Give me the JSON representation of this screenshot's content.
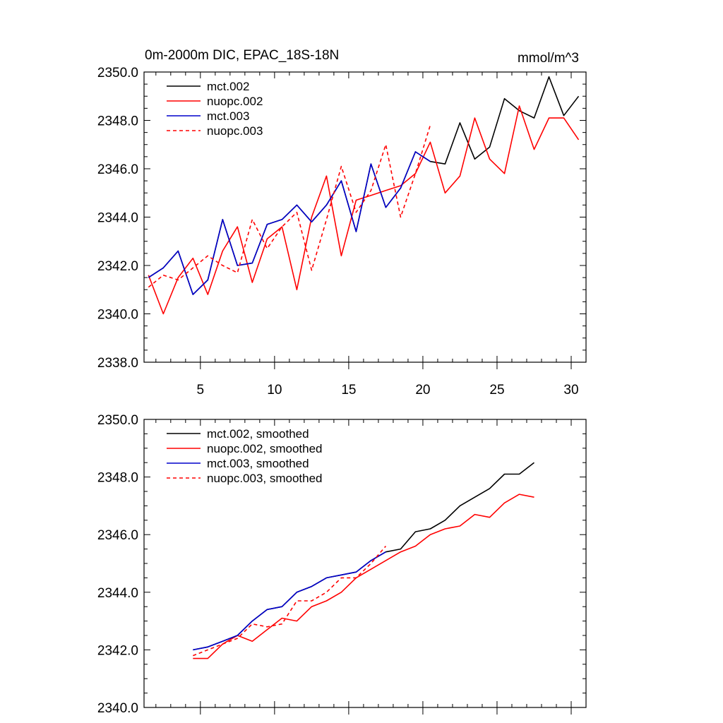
{
  "chart_data": [
    {
      "type": "line",
      "title": "0m-2000m DIC, EPAC_18S-18N",
      "units": "mmol/m^3",
      "xlim": [
        1.2,
        31
      ],
      "ylim": [
        2338,
        2350
      ],
      "xticks": [
        5,
        10,
        15,
        20,
        25,
        30
      ],
      "xtick_labels": [
        "5",
        "10",
        "15",
        "20",
        "25",
        "30"
      ],
      "yticks": [
        2338,
        2340,
        2342,
        2344,
        2346,
        2348,
        2350
      ],
      "ytick_labels": [
        "2338.0",
        "2340.0",
        "2342.0",
        "2344.0",
        "2346.0",
        "2348.0",
        "2350.0"
      ],
      "legend_position": "top-left",
      "series": [
        {
          "name": "mct.002",
          "color": "#000000",
          "dash": "solid",
          "x": [
            1.5,
            2.5,
            3.5,
            4.5,
            5.5,
            6.5,
            7.5,
            8.5,
            9.5,
            10.5,
            11.5,
            12.5,
            13.5,
            14.5,
            15.5,
            16.5,
            17.5,
            18.5,
            19.5,
            20.5,
            21.5,
            22.5,
            23.5,
            24.5,
            25.5,
            26.5,
            27.5,
            28.5,
            29.5,
            30.5
          ],
          "y": [
            2341.5,
            2341.9,
            2342.6,
            2340.8,
            2341.4,
            2343.9,
            2342.0,
            2342.1,
            2343.7,
            2343.9,
            2344.5,
            2343.8,
            2344.5,
            2345.5,
            2343.4,
            2346.2,
            2344.4,
            2345.2,
            2346.7,
            2346.3,
            2346.2,
            2347.9,
            2346.4,
            2346.9,
            2348.9,
            2348.4,
            2348.1,
            2349.8,
            2348.2,
            2349.0
          ]
        },
        {
          "name": "nuopc.002",
          "color": "#ff0000",
          "dash": "solid",
          "x": [
            1.5,
            2.5,
            3.5,
            4.5,
            5.5,
            6.5,
            7.5,
            8.5,
            9.5,
            10.5,
            11.5,
            12.5,
            13.5,
            14.5,
            15.5,
            16.5,
            17.5,
            18.5,
            19.5,
            20.5,
            21.5,
            22.5,
            23.5,
            24.5,
            25.5,
            26.5,
            27.5,
            28.5,
            29.5,
            30.5
          ],
          "y": [
            2341.6,
            2340.0,
            2341.5,
            2342.3,
            2340.8,
            2342.6,
            2343.6,
            2341.3,
            2343.1,
            2343.6,
            2341.0,
            2344.0,
            2345.7,
            2342.4,
            2344.7,
            2344.9,
            2345.1,
            2345.3,
            2345.8,
            2347.1,
            2345.0,
            2345.7,
            2348.1,
            2346.4,
            2345.8,
            2348.6,
            2346.8,
            2348.1,
            2348.1,
            2347.2
          ]
        },
        {
          "name": "mct.003",
          "color": "#0000cc",
          "dash": "solid",
          "x": [
            1.5,
            2.5,
            3.5,
            4.5,
            5.5,
            6.5,
            7.5,
            8.5,
            9.5,
            10.5,
            11.5,
            12.5,
            13.5,
            14.5,
            15.5,
            16.5,
            17.5,
            18.5,
            19.5,
            20.5
          ],
          "y": [
            2341.5,
            2341.9,
            2342.6,
            2340.8,
            2341.4,
            2343.9,
            2342.0,
            2342.1,
            2343.7,
            2343.9,
            2344.5,
            2343.8,
            2344.5,
            2345.5,
            2343.4,
            2346.2,
            2344.4,
            2345.2,
            2346.7,
            2346.3
          ]
        },
        {
          "name": "nuopc.003",
          "color": "#ff0000",
          "dash": "dashed",
          "x": [
            1.5,
            2.5,
            3.5,
            4.5,
            5.5,
            6.5,
            7.5,
            8.5,
            9.5,
            10.5,
            11.5,
            12.5,
            13.5,
            14.5,
            15.5,
            16.5,
            17.5,
            18.5,
            19.5,
            20.5
          ],
          "y": [
            2341.1,
            2341.6,
            2341.4,
            2341.9,
            2342.4,
            2342.0,
            2341.7,
            2343.9,
            2342.7,
            2343.6,
            2344.2,
            2341.8,
            2343.9,
            2346.1,
            2344.2,
            2345.1,
            2347.0,
            2344.0,
            2345.8,
            2347.8
          ]
        }
      ]
    },
    {
      "type": "line",
      "title": "",
      "xlim": [
        1.2,
        31
      ],
      "ylim": [
        2340,
        2350
      ],
      "xticks": [
        5,
        10,
        15,
        20,
        25,
        30
      ],
      "xtick_labels": [],
      "yticks": [
        2340,
        2342,
        2344,
        2346,
        2348,
        2350
      ],
      "ytick_labels": [
        "2340.0",
        "2342.0",
        "2344.0",
        "2346.0",
        "2348.0",
        "2350.0"
      ],
      "legend_position": "top-left",
      "series": [
        {
          "name": "mct.002, smoothed",
          "color": "#000000",
          "dash": "solid",
          "x": [
            4.5,
            5.5,
            6.5,
            7.5,
            8.5,
            9.5,
            10.5,
            11.5,
            12.5,
            13.5,
            14.5,
            15.5,
            16.5,
            17.5,
            18.5,
            19.5,
            20.5,
            21.5,
            22.5,
            23.5,
            24.5,
            25.5,
            26.5,
            27.5
          ],
          "y": [
            2342.0,
            2342.1,
            2342.3,
            2342.5,
            2343.0,
            2343.4,
            2343.5,
            2344.0,
            2344.2,
            2344.5,
            2344.6,
            2344.7,
            2345.1,
            2345.4,
            2345.5,
            2346.1,
            2346.2,
            2346.5,
            2347.0,
            2347.3,
            2347.6,
            2348.1,
            2348.1,
            2348.5
          ]
        },
        {
          "name": "nuopc.002, smoothed",
          "color": "#ff0000",
          "dash": "solid",
          "x": [
            4.5,
            5.5,
            6.5,
            7.5,
            8.5,
            9.5,
            10.5,
            11.5,
            12.5,
            13.5,
            14.5,
            15.5,
            16.5,
            17.5,
            18.5,
            19.5,
            20.5,
            21.5,
            22.5,
            23.5,
            24.5,
            25.5,
            26.5,
            27.5
          ],
          "y": [
            2341.7,
            2341.7,
            2342.2,
            2342.5,
            2342.3,
            2342.7,
            2343.1,
            2343.0,
            2343.5,
            2343.7,
            2344.0,
            2344.5,
            2344.8,
            2345.1,
            2345.4,
            2345.6,
            2346.0,
            2346.2,
            2346.3,
            2346.7,
            2346.6,
            2347.1,
            2347.4,
            2347.3
          ]
        },
        {
          "name": "mct.003, smoothed",
          "color": "#0000cc",
          "dash": "solid",
          "x": [
            4.5,
            5.5,
            6.5,
            7.5,
            8.5,
            9.5,
            10.5,
            11.5,
            12.5,
            13.5,
            14.5,
            15.5,
            16.5,
            17.5
          ],
          "y": [
            2342.0,
            2342.1,
            2342.3,
            2342.5,
            2343.0,
            2343.4,
            2343.5,
            2344.0,
            2344.2,
            2344.5,
            2344.6,
            2344.7,
            2345.1,
            2345.4
          ]
        },
        {
          "name": "nuopc.003, smoothed",
          "color": "#ff0000",
          "dash": "dashed",
          "x": [
            4.5,
            5.5,
            6.5,
            7.5,
            8.5,
            9.5,
            10.5,
            11.5,
            12.5,
            13.5,
            14.5,
            15.5,
            16.5,
            17.5
          ],
          "y": [
            2341.8,
            2342.0,
            2342.2,
            2342.4,
            2342.9,
            2342.8,
            2342.9,
            2343.7,
            2343.7,
            2344.0,
            2344.5,
            2344.5,
            2345.0,
            2345.6
          ]
        }
      ]
    }
  ]
}
